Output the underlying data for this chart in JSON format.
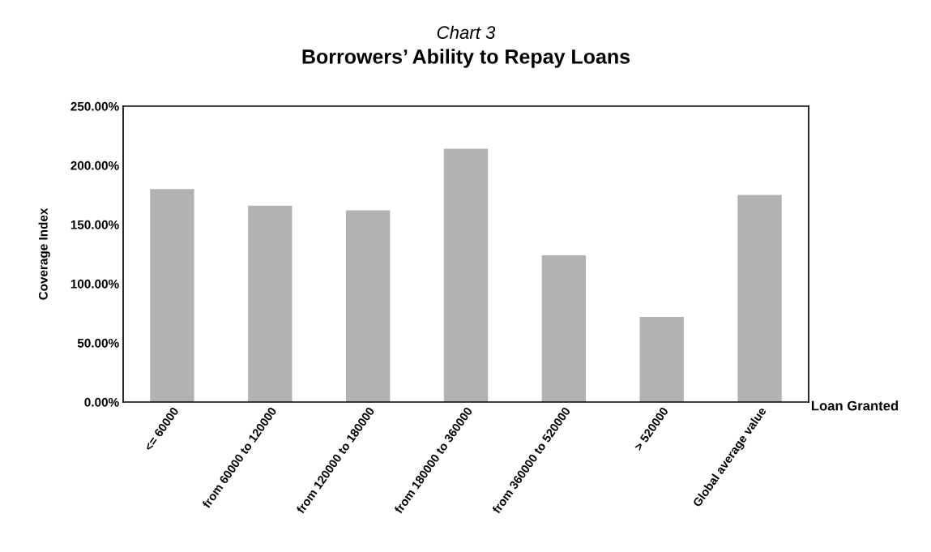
{
  "chart_data": {
    "type": "bar",
    "subtitle": "Chart 3",
    "title": "Borrowers’ Ability to Repay Loans",
    "xlabel": "Loan Granted",
    "ylabel": "Coverage Index",
    "categories": [
      "<= 60000",
      "from 60000 to 120000",
      "from 120000 to 180000",
      "from 180000 to 360000",
      "from 360000 to 520000",
      "> 520000",
      "Global average value"
    ],
    "values": [
      180,
      166,
      162,
      214,
      124,
      72,
      175
    ],
    "color": "#b2b2b2",
    "ylim": [
      0,
      250
    ],
    "yticks": [
      {
        "value": 0,
        "label": "0.00%"
      },
      {
        "value": 50,
        "label": "50.00%"
      },
      {
        "value": 100,
        "label": "100.00%"
      },
      {
        "value": 150,
        "label": "150.00%"
      },
      {
        "value": 200,
        "label": "200.00%"
      },
      {
        "value": 250,
        "label": "250.00%"
      }
    ],
    "grid": false,
    "legend": false
  }
}
